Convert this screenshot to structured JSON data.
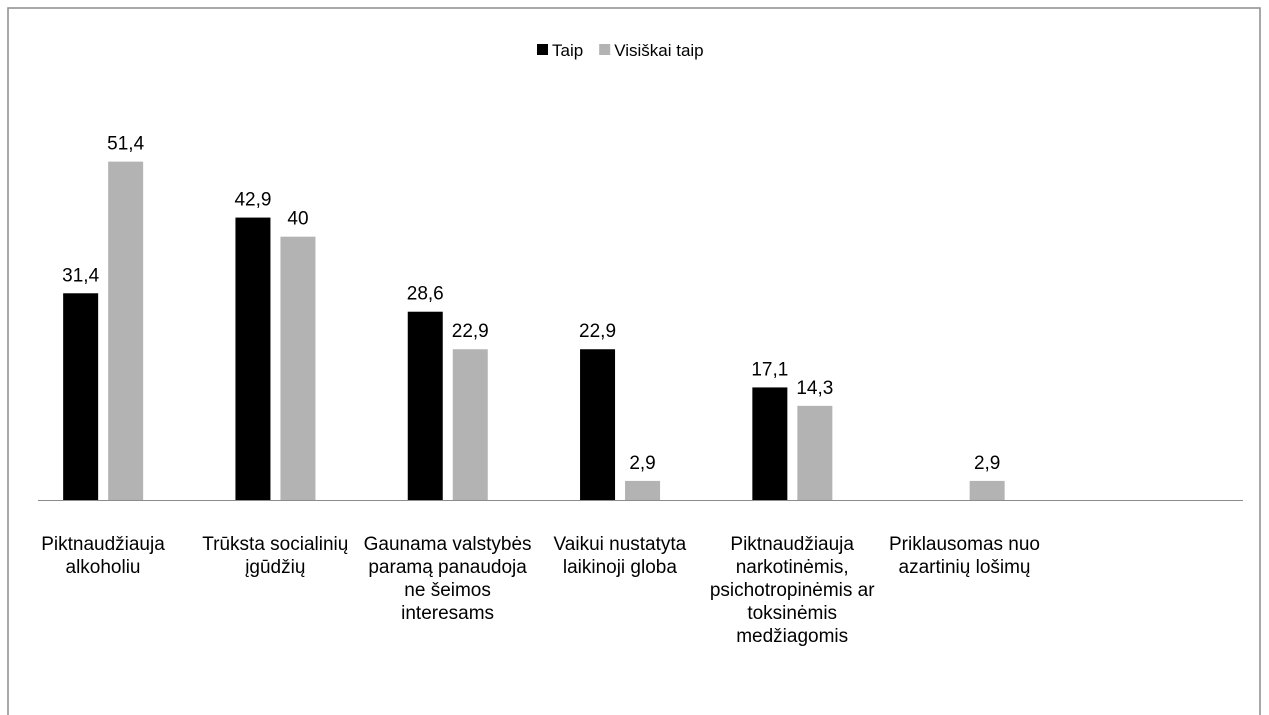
{
  "chart_data": {
    "type": "bar",
    "categories": [
      "Piktnaudžiauja alkoholiu",
      "Trūksta socialinių įgūdžių",
      "Gaunama valstybės paramą panaudoja ne šeimos interesams",
      "Vaikui nustatyta laikinoji globa",
      "Piktnaudžiauja narkotinėmis, psichotropinėmis ar toksinėmis medžiagomis",
      "Priklausomas nuo azartinių lošimų",
      null
    ],
    "series": [
      {
        "name": "Taip",
        "color": "#000000",
        "values": [
          31.4,
          42.9,
          28.6,
          22.9,
          17.1,
          null,
          null
        ],
        "value_labels": [
          "31,4",
          "42,9",
          "28,6",
          "22,9",
          "17,1",
          null,
          null
        ]
      },
      {
        "name": "Visiškai taip",
        "color": "#b3b3b3",
        "values": [
          51.4,
          40,
          22.9,
          2.9,
          14.3,
          2.9,
          null
        ],
        "value_labels": [
          "51,4",
          "40",
          "22,9",
          "2,9",
          "14,3",
          "2,9",
          null
        ]
      }
    ],
    "ylim": [
      0,
      60
    ],
    "legend": "top"
  }
}
